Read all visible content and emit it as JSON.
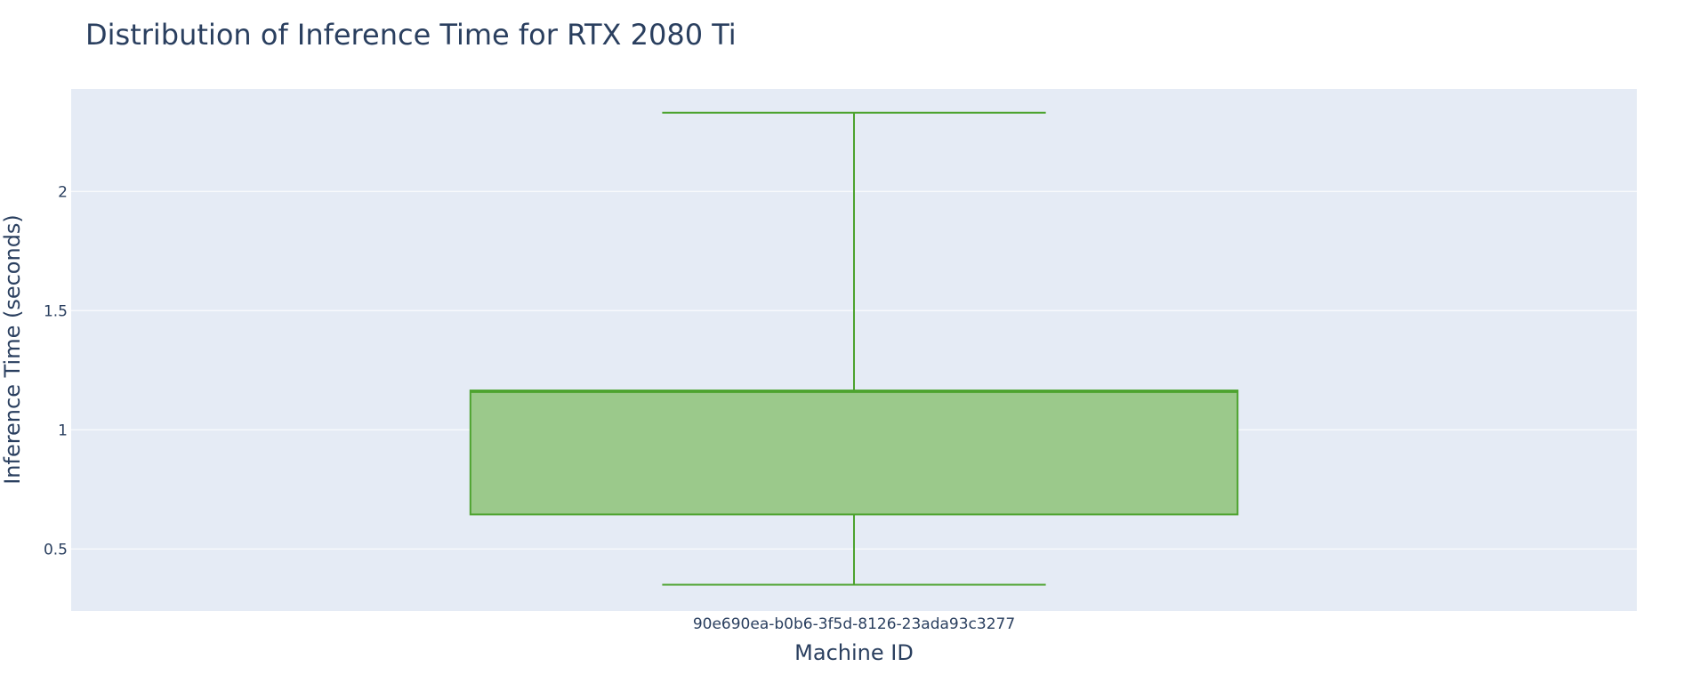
{
  "chart_data": {
    "type": "box",
    "title": "Distribution of Inference Time for RTX 2080 Ti",
    "xlabel": "Machine ID",
    "ylabel": "Inference Time (seconds)",
    "categories": [
      "90e690ea-b0b6-3f5d-8126-23ada93c3277"
    ],
    "ylim": [
      0.24,
      2.43
    ],
    "yticks": [
      0.5,
      1,
      1.5,
      2
    ],
    "ytick_labels": [
      "0.5",
      "1",
      "1.5",
      "2"
    ],
    "boxes": [
      {
        "category": "90e690ea-b0b6-3f5d-8126-23ada93c3277",
        "min": 0.35,
        "q1": 0.645,
        "median": 1.16,
        "q3": 1.165,
        "max": 2.33
      }
    ],
    "grid": true,
    "legend": false,
    "colors": {
      "plot_background": "#e5ebf5",
      "grid": "#ffffff",
      "box_line": "#4da32f",
      "box_fill": "#9bc98b",
      "text": "#2a3f5f"
    }
  }
}
